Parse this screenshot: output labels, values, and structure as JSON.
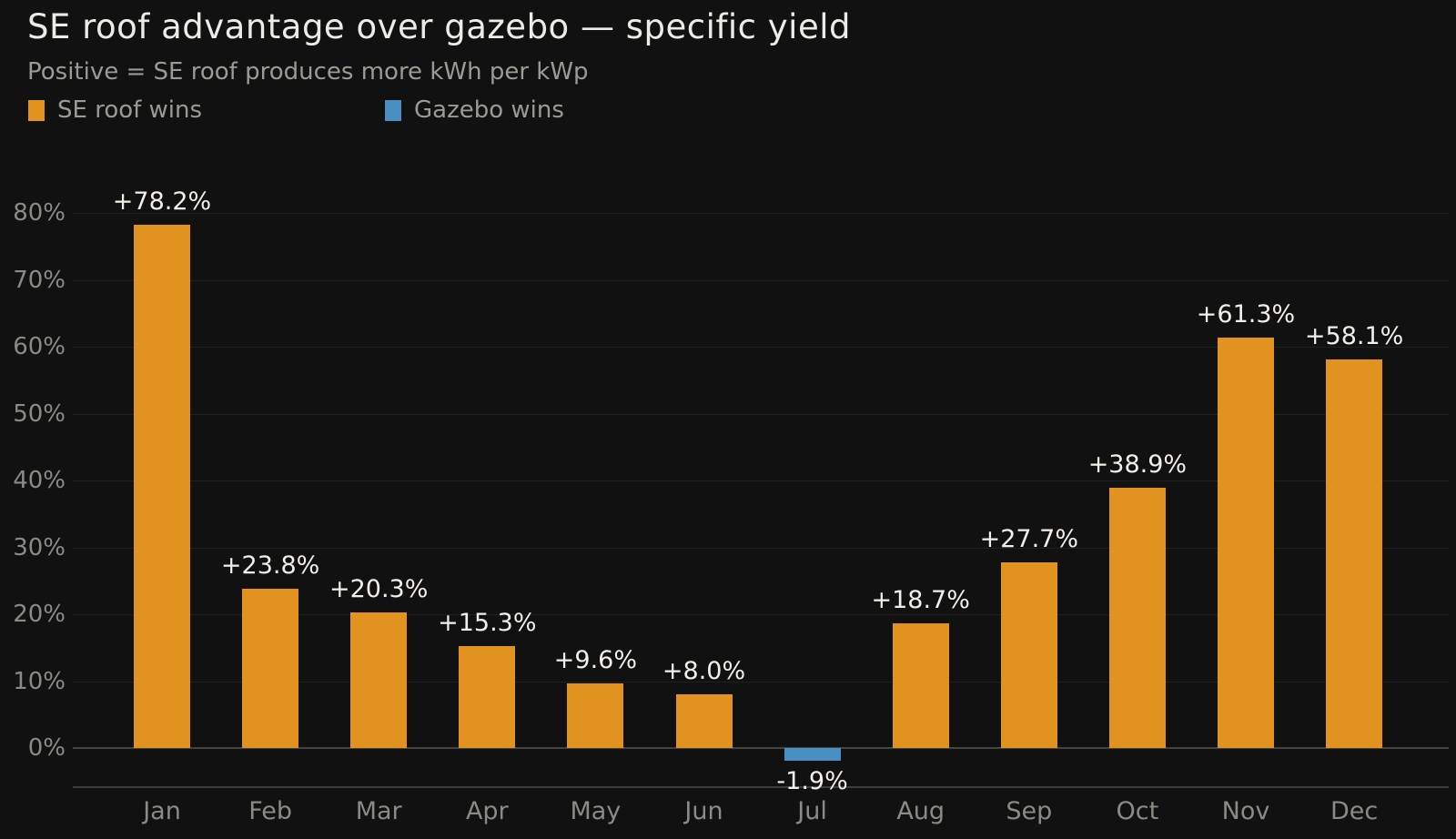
{
  "header": {
    "title": "SE roof advantage over gazebo — specific yield",
    "subtitle": "Positive = SE roof produces more kWh per kWp"
  },
  "legend": {
    "entries": [
      {
        "label": "SE roof wins",
        "color": "#E1921F"
      },
      {
        "label": "Gazebo wins",
        "color": "#4A8FC2"
      }
    ]
  },
  "chart_data": {
    "type": "bar",
    "title": "SE roof advantage over gazebo — specific yield",
    "subtitle": "Positive = SE roof produces more kWh per kWp",
    "categories": [
      "Jan",
      "Feb",
      "Mar",
      "Apr",
      "May",
      "Jun",
      "Jul",
      "Aug",
      "Sep",
      "Oct",
      "Nov",
      "Dec"
    ],
    "values": [
      78.2,
      23.8,
      20.3,
      15.3,
      9.6,
      8.0,
      -1.9,
      18.7,
      27.7,
      38.9,
      61.3,
      58.1
    ],
    "bar_labels": [
      "+78.2%",
      "+23.8%",
      "+20.3%",
      "+15.3%",
      "+9.6%",
      "+8.0%",
      "-1.9%",
      "+18.7%",
      "+27.7%",
      "+38.9%",
      "+61.3%",
      "+58.1%"
    ],
    "xlabel": "",
    "ylabel": "",
    "yticks": [
      0,
      10,
      20,
      30,
      40,
      50,
      60,
      70,
      80
    ],
    "ytick_labels": [
      "0%",
      "10%",
      "20%",
      "30%",
      "40%",
      "50%",
      "60%",
      "70%",
      "80%"
    ],
    "ylim": [
      -6,
      86
    ],
    "grid": true,
    "legend_position": "top-left",
    "colors": {
      "positive": "#E1921F",
      "negative": "#4A8FC2",
      "background": "#111111",
      "gridline": "#202020",
      "zero_line": "#45453F",
      "axis_spine": "#3E3E39",
      "title_text": "#EDEBE5",
      "muted_text": "#9B9B94",
      "tick_text": "#8B8B85",
      "value_label_text": "#F2EFE8"
    }
  }
}
